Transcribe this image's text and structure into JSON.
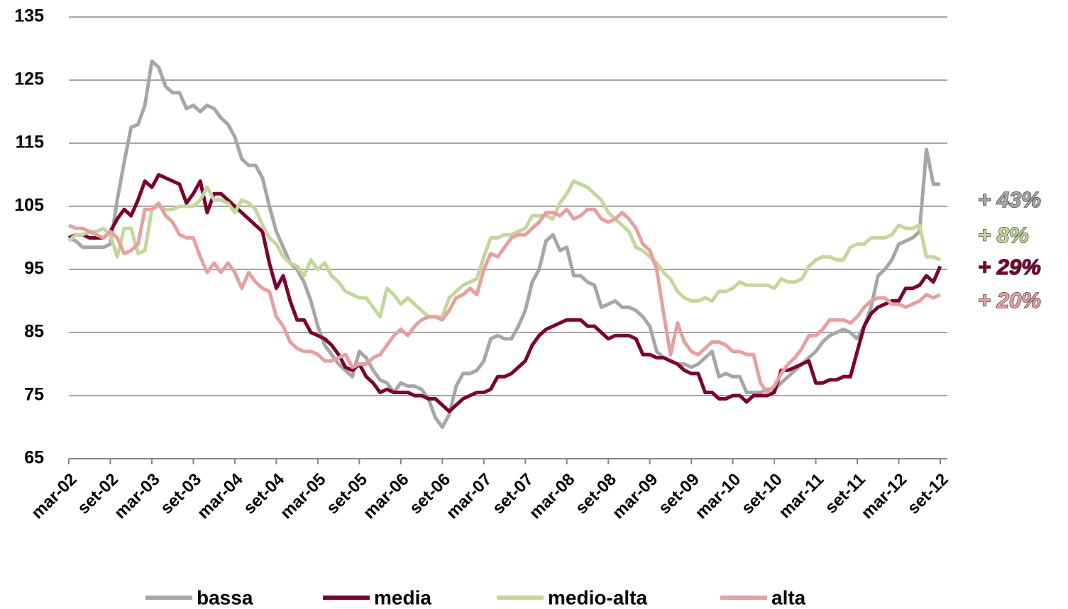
{
  "chart_data": {
    "type": "line",
    "categories": [
      "mar-02",
      null,
      null,
      null,
      null,
      null,
      "set-02",
      null,
      null,
      null,
      null,
      null,
      "mar-03",
      null,
      null,
      null,
      null,
      null,
      "set-03",
      null,
      null,
      null,
      null,
      null,
      "mar-04",
      null,
      null,
      null,
      null,
      null,
      "set-04",
      null,
      null,
      null,
      null,
      null,
      "mar-05",
      null,
      null,
      null,
      null,
      null,
      "set-05",
      null,
      null,
      null,
      null,
      null,
      "mar-06",
      null,
      null,
      null,
      null,
      null,
      "set-06",
      null,
      null,
      null,
      null,
      null,
      "mar-07",
      null,
      null,
      null,
      null,
      null,
      "set-07",
      null,
      null,
      null,
      null,
      null,
      "mar-08",
      null,
      null,
      null,
      null,
      null,
      "set-08",
      null,
      null,
      null,
      null,
      null,
      "mar-09",
      null,
      null,
      null,
      null,
      null,
      "set-09",
      null,
      null,
      null,
      null,
      null,
      "mar-10",
      null,
      null,
      null,
      null,
      null,
      "set-10",
      null,
      null,
      null,
      null,
      null,
      "mar-11",
      null,
      null,
      null,
      null,
      null,
      "set-11",
      null,
      null,
      null,
      null,
      null,
      "mar-12",
      null,
      null,
      null,
      null,
      null,
      "set-12"
    ],
    "series": [
      {
        "name": "bassa",
        "color": "#a6a6a6",
        "values": [
          100,
          99.5,
          98.5,
          98.5,
          98.5,
          98.5,
          99,
          106,
          112,
          117.5,
          118,
          121,
          128,
          127,
          124,
          123,
          123,
          120.5,
          121,
          120,
          121,
          120.5,
          119,
          118,
          116,
          112.5,
          111.5,
          111.5,
          109.5,
          105,
          101,
          98.5,
          96,
          95,
          93,
          90,
          86,
          83,
          81.5,
          80,
          79,
          78,
          82,
          81,
          79,
          77.5,
          77,
          75.5,
          77,
          76.5,
          76.5,
          76,
          74.5,
          71.5,
          70,
          72,
          76.5,
          78.5,
          78.5,
          79,
          80.5,
          84,
          84.5,
          84,
          84,
          86,
          88.5,
          93,
          95,
          99.5,
          100.5,
          98,
          98.5,
          94,
          94,
          93,
          92.5,
          89,
          89.5,
          90,
          89,
          89,
          88.5,
          87.5,
          86,
          82,
          81,
          80.5,
          80,
          80,
          79.5,
          80,
          81,
          82,
          78,
          78.5,
          78,
          78,
          75.5,
          75.5,
          75.5,
          76,
          76,
          77,
          78,
          79,
          80,
          81,
          82,
          83.5,
          84.5,
          85,
          85.5,
          85,
          84,
          86,
          89,
          94,
          95,
          96.5,
          99,
          99.5,
          100,
          101,
          114,
          108.5,
          108.5
        ]
      },
      {
        "name": "media",
        "color": "#7b0030",
        "values": [
          100,
          100.5,
          100.5,
          100,
          100,
          100,
          101,
          103,
          104.5,
          103.5,
          106,
          109,
          108,
          110,
          109.5,
          109,
          108.5,
          105.5,
          107,
          109,
          104,
          107,
          107,
          106,
          105,
          104,
          103,
          102,
          101,
          96,
          92,
          94,
          90,
          87,
          87,
          85,
          84.5,
          84,
          83,
          81.5,
          79.5,
          79,
          80,
          78,
          77,
          75.5,
          76,
          75.5,
          75.5,
          75.5,
          75,
          75,
          74.5,
          74.5,
          73.5,
          72.5,
          73.5,
          74.5,
          75,
          75.5,
          75.5,
          76,
          78,
          78,
          78.5,
          79.5,
          80.5,
          83,
          84.5,
          85.5,
          86,
          86.5,
          87,
          87,
          87,
          86,
          86,
          85,
          84,
          84.5,
          84.5,
          84.5,
          84,
          81.5,
          81.5,
          81,
          81,
          80.5,
          80,
          79,
          78.5,
          78.5,
          75.5,
          75.5,
          74.5,
          74.5,
          75,
          75,
          74,
          75,
          75,
          75,
          75.5,
          79,
          79,
          79.5,
          80,
          80.5,
          77,
          77,
          77.5,
          77.5,
          78,
          78,
          82,
          86,
          88,
          89,
          89.5,
          90,
          90,
          92,
          92,
          92.5,
          94,
          93,
          95.5
        ]
      },
      {
        "name": "medio-alta",
        "color": "#c4d79b",
        "values": [
          99.5,
          100.5,
          100.5,
          101,
          101,
          101.5,
          100.5,
          97,
          101.5,
          101.5,
          97.5,
          98,
          104.5,
          105,
          104.5,
          104.5,
          105,
          105,
          105,
          106,
          108,
          106,
          106,
          105.5,
          104,
          106,
          105.5,
          104.5,
          102,
          100,
          99,
          97,
          96,
          95.5,
          94,
          96.5,
          95,
          96,
          94,
          93,
          91.5,
          91,
          90.5,
          90.5,
          89,
          87.5,
          92,
          91,
          89.5,
          90.5,
          89.5,
          88.5,
          87.5,
          87.5,
          87.5,
          90.5,
          91.5,
          92.5,
          93,
          93.5,
          97,
          100,
          100,
          100.5,
          100.5,
          101,
          101.5,
          103.5,
          103.5,
          103.5,
          103,
          105.5,
          107,
          109,
          108.5,
          108,
          107,
          106,
          104,
          103,
          102,
          101,
          98.5,
          98,
          97,
          96,
          94.5,
          93.5,
          91.5,
          90.5,
          90,
          90,
          90.5,
          90,
          91.5,
          91.5,
          92,
          93,
          92.5,
          92.5,
          92.5,
          92.5,
          92,
          93.5,
          93,
          93,
          93.5,
          95.5,
          96.5,
          97,
          97,
          96.5,
          96.5,
          98.5,
          99,
          99,
          100,
          100,
          100,
          100.5,
          102,
          101.5,
          101.5,
          102,
          97,
          97,
          96.5
        ]
      },
      {
        "name": "alta",
        "color": "#e6a0a0",
        "values": [
          102,
          101.5,
          101.5,
          101,
          100.5,
          100,
          101,
          100,
          97.5,
          98,
          99,
          104.5,
          104.5,
          105.5,
          103.5,
          102.5,
          100.5,
          100,
          100,
          97,
          94.5,
          96,
          94.5,
          96,
          94.5,
          92,
          94.5,
          93,
          92,
          91.5,
          87.5,
          86,
          83.5,
          82.5,
          82,
          82,
          81.5,
          80.5,
          80.5,
          81,
          81.5,
          79.5,
          80,
          80,
          81,
          81.5,
          83,
          84.5,
          85.5,
          84.5,
          86,
          87,
          87.5,
          87.5,
          87,
          88.5,
          90.5,
          91,
          92,
          91,
          95,
          97.5,
          97,
          98.5,
          100,
          100.5,
          100.5,
          101.5,
          102.5,
          104,
          104,
          103.5,
          104.5,
          103,
          103.5,
          104.5,
          104.5,
          103,
          102.5,
          103,
          104,
          103,
          101.5,
          99,
          98,
          95,
          88,
          81.5,
          86.5,
          83.5,
          82,
          81.5,
          82.5,
          83.5,
          83.5,
          83,
          82,
          82,
          81.5,
          81.5,
          77,
          75.5,
          76.5,
          78.5,
          80,
          81,
          82.5,
          84.5,
          84.5,
          85.5,
          87,
          87,
          87,
          86.5,
          87.5,
          89,
          90,
          90.5,
          90.5,
          89.5,
          89.5,
          89,
          89.5,
          90,
          91,
          90.5,
          91
        ]
      }
    ],
    "annotations": [
      {
        "text": "+ 43%",
        "color": "#a6a6a6"
      },
      {
        "text": "+ 8%",
        "color": "#c4d79b"
      },
      {
        "text": "+ 29%",
        "color": "#7b0030"
      },
      {
        "text": "+ 20%",
        "color": "#e6a0a0"
      }
    ],
    "ylim": [
      65,
      135
    ],
    "yticks": [
      65,
      75,
      85,
      95,
      105,
      115,
      125,
      135
    ],
    "grid": true,
    "legend": "bottom"
  }
}
